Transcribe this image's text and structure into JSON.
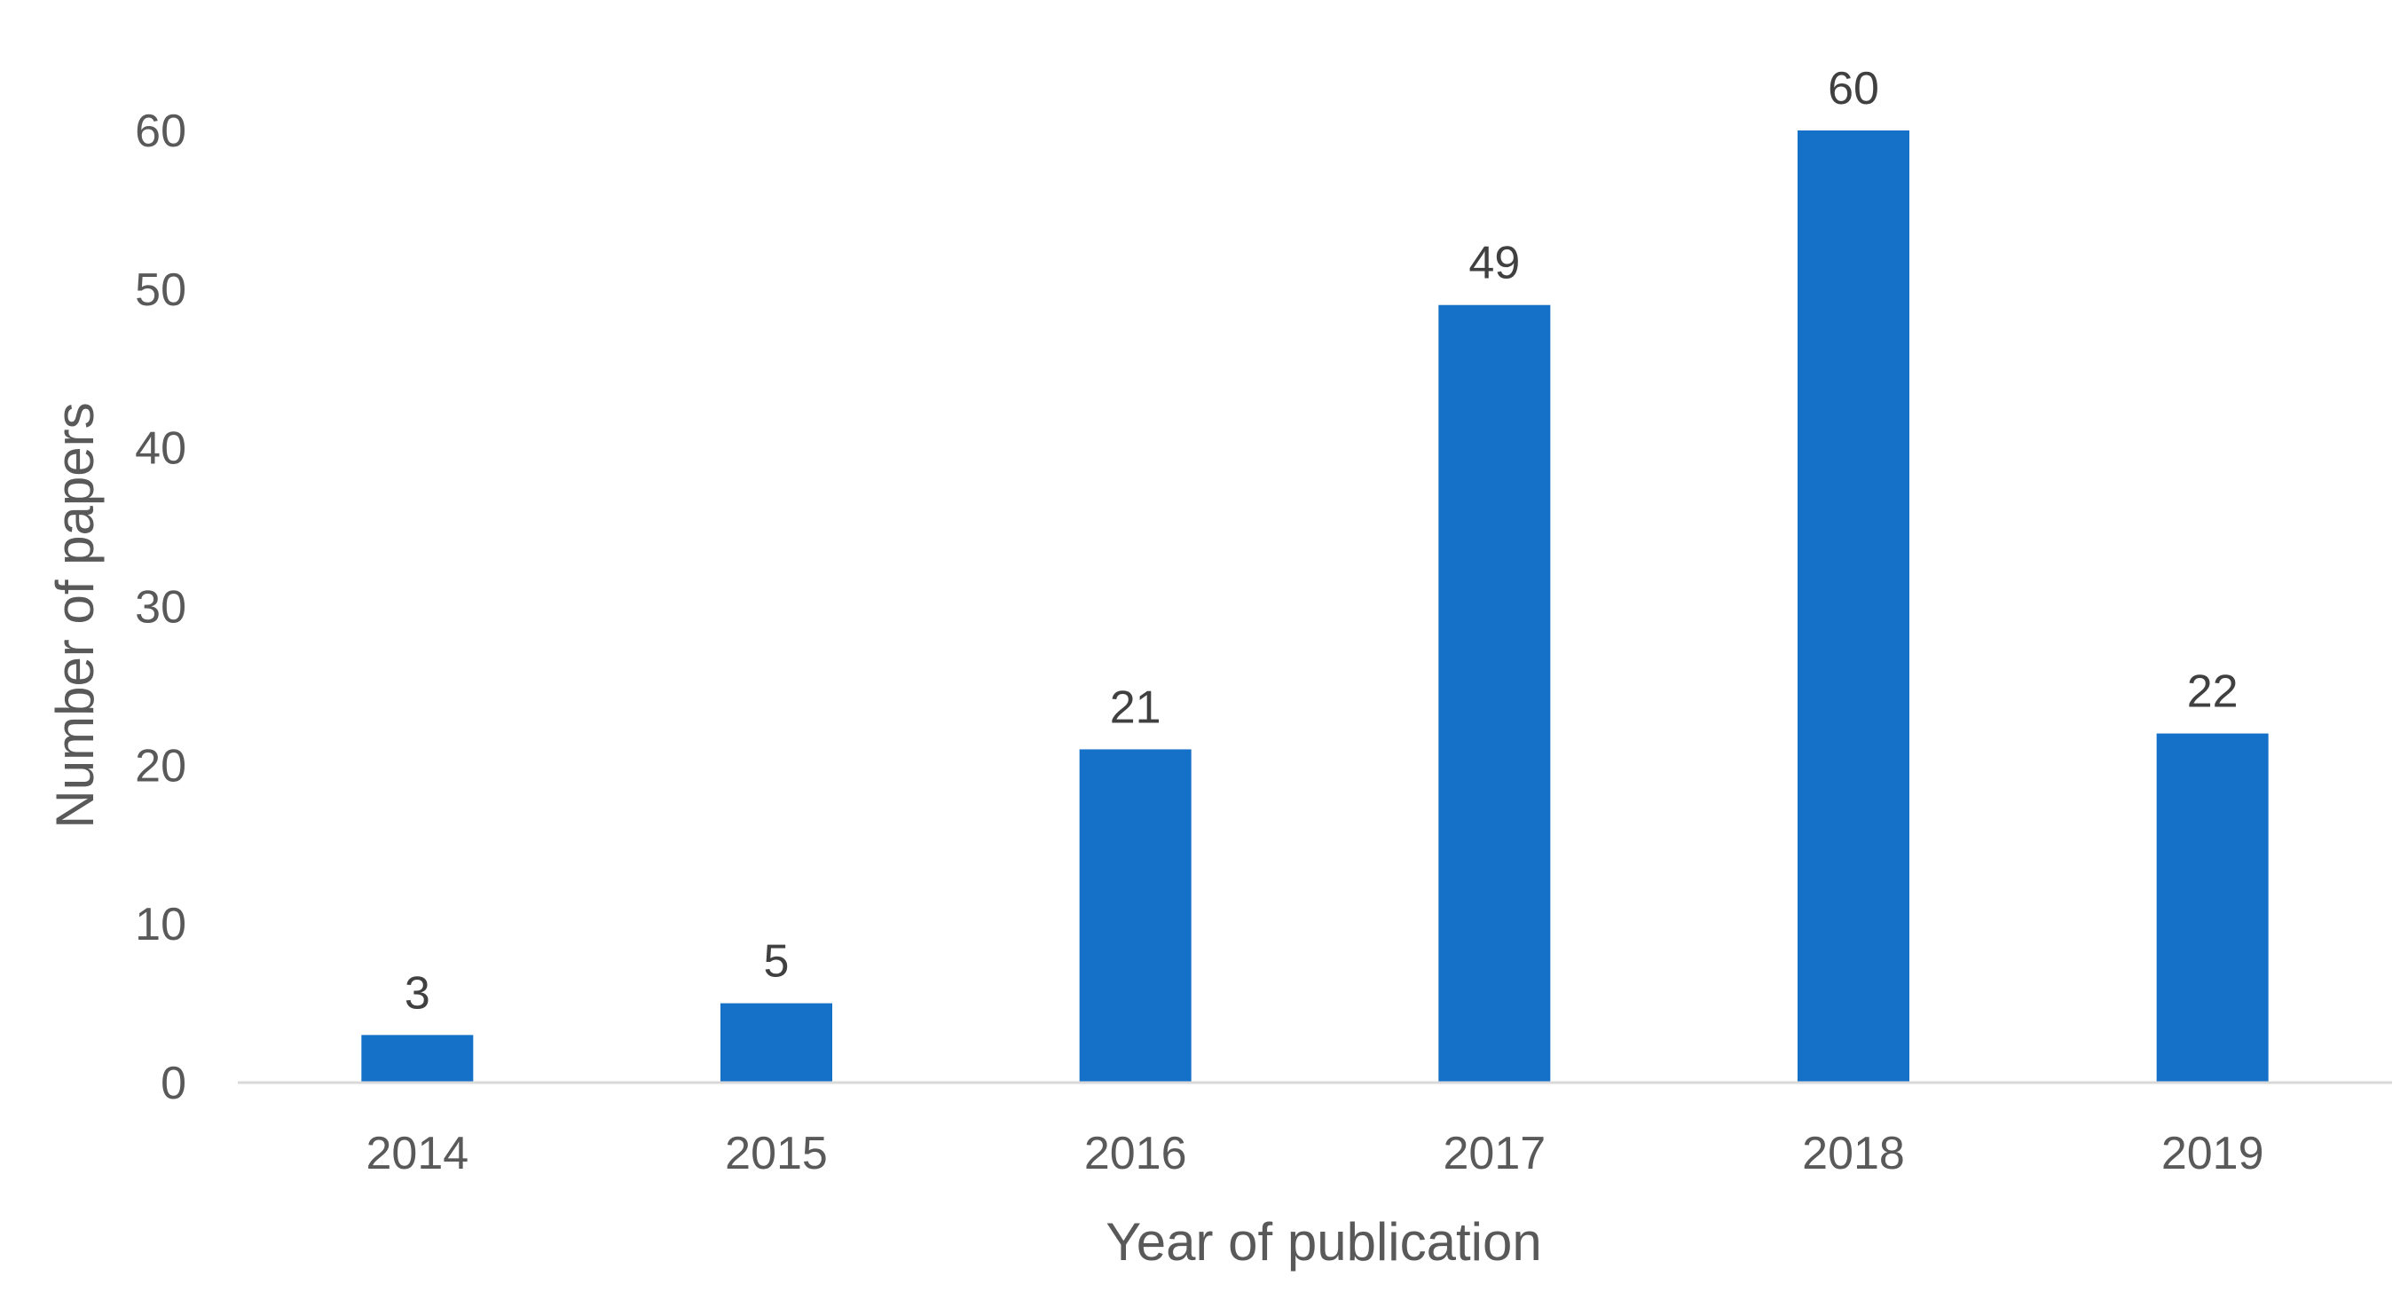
{
  "chart_data": {
    "type": "bar",
    "title": "",
    "xlabel": "Year of publication",
    "ylabel": "Number of papers",
    "categories": [
      "2014",
      "2015",
      "2016",
      "2017",
      "2018",
      "2019"
    ],
    "series": [
      {
        "values": [
          3,
          5,
          21,
          49,
          60,
          22
        ]
      }
    ],
    "ylim": [
      0,
      60
    ],
    "yticks": [
      "0",
      "10",
      "20",
      "30",
      "40",
      "50",
      "60"
    ],
    "data_labels": [
      "3",
      "5",
      "21",
      "49",
      "60",
      "22"
    ],
    "grid": false,
    "legend": "none",
    "colors": {
      "bar": "#1570C8",
      "axis_line": "#D9D9D9",
      "tick_text": "#595959",
      "data_label_text": "#404040"
    }
  }
}
